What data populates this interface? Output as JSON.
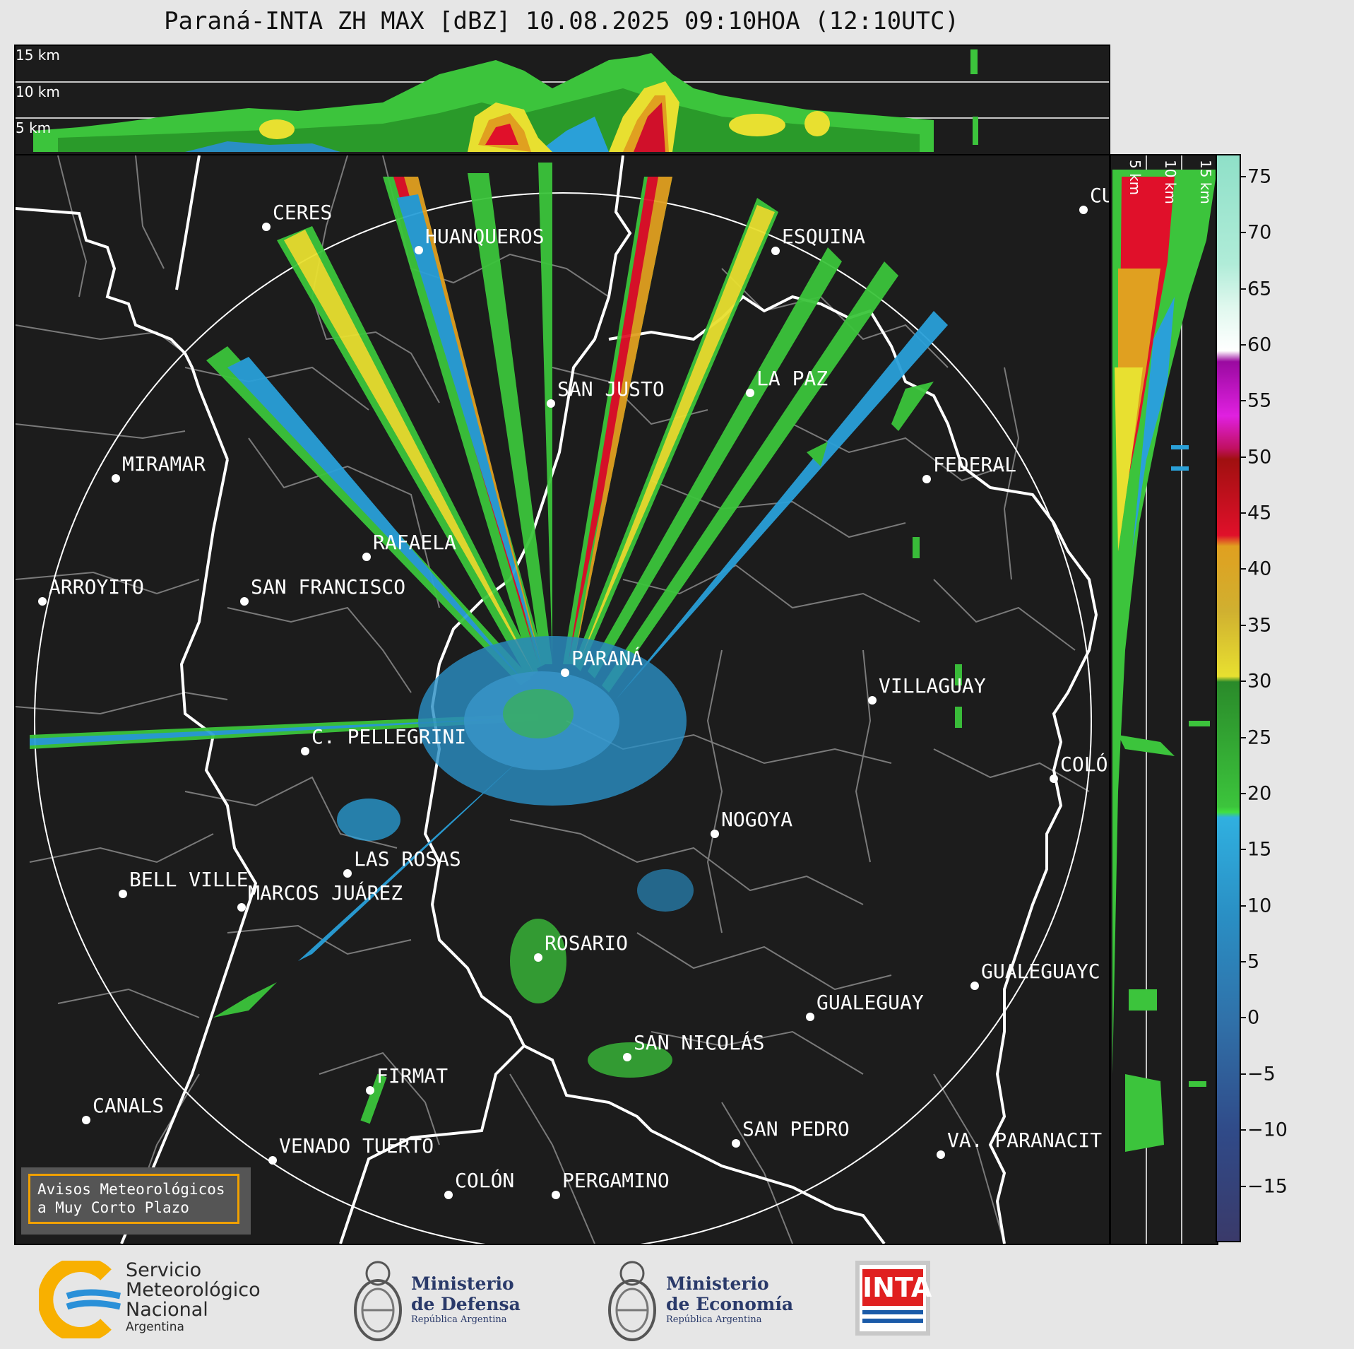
{
  "title": "Paraná-INTA ZH MAX [dBZ] 10.08.2025 09:10HOA (12:10UTC)",
  "top_panel_km_labels": [
    "15 km",
    "10 km",
    "5 km"
  ],
  "side_panel_km_labels": [
    "5 km",
    "10 km",
    "15 km"
  ],
  "colorbar": {
    "ticks": [
      "75",
      "70",
      "65",
      "60",
      "55",
      "50",
      "45",
      "40",
      "35",
      "30",
      "25",
      "20",
      "15",
      "10",
      "5",
      "0",
      "−5",
      "−10",
      "−15"
    ],
    "range_dbz": [
      -20,
      77
    ]
  },
  "cities": [
    "CERES",
    "HUANQUEROS",
    "ESQUINA",
    "CU",
    "SAN JUSTO",
    "LA PAZ",
    "MIRAMAR",
    "FEDERAL",
    "RAFAELA",
    "ARROYITO",
    "SAN FRANCISCO",
    "PARANÁ",
    "VILLAGUAY",
    "C. PELLEGRINI",
    "COLÓ",
    "NOGOYA",
    "LAS ROSAS",
    "BELL VILLE",
    "MARCOS JUÁREZ",
    "ROSARIO",
    "GUALEGUAYC",
    "GUALEGUAY",
    "SAN NICOLÁS",
    "FIRMAT",
    "CANALS",
    "SAN PEDRO",
    "VENADO TUERTO",
    "VA. PARANACIT",
    "COLÓN",
    "PERGAMINO"
  ],
  "notice": {
    "line1": "Avisos Meteorológicos",
    "line2": "a Muy Corto Plazo"
  },
  "footer": {
    "smn": {
      "line1": "Servicio",
      "line2": "Meteorológico",
      "line3": "Nacional",
      "line4": "Argentina"
    },
    "defensa": {
      "line1": "Ministerio",
      "line2": "de Defensa",
      "line3": "República Argentina"
    },
    "economia": {
      "line1": "Ministerio",
      "line2": "de Economía",
      "line3": "República Argentina"
    },
    "inta": "INTA"
  }
}
